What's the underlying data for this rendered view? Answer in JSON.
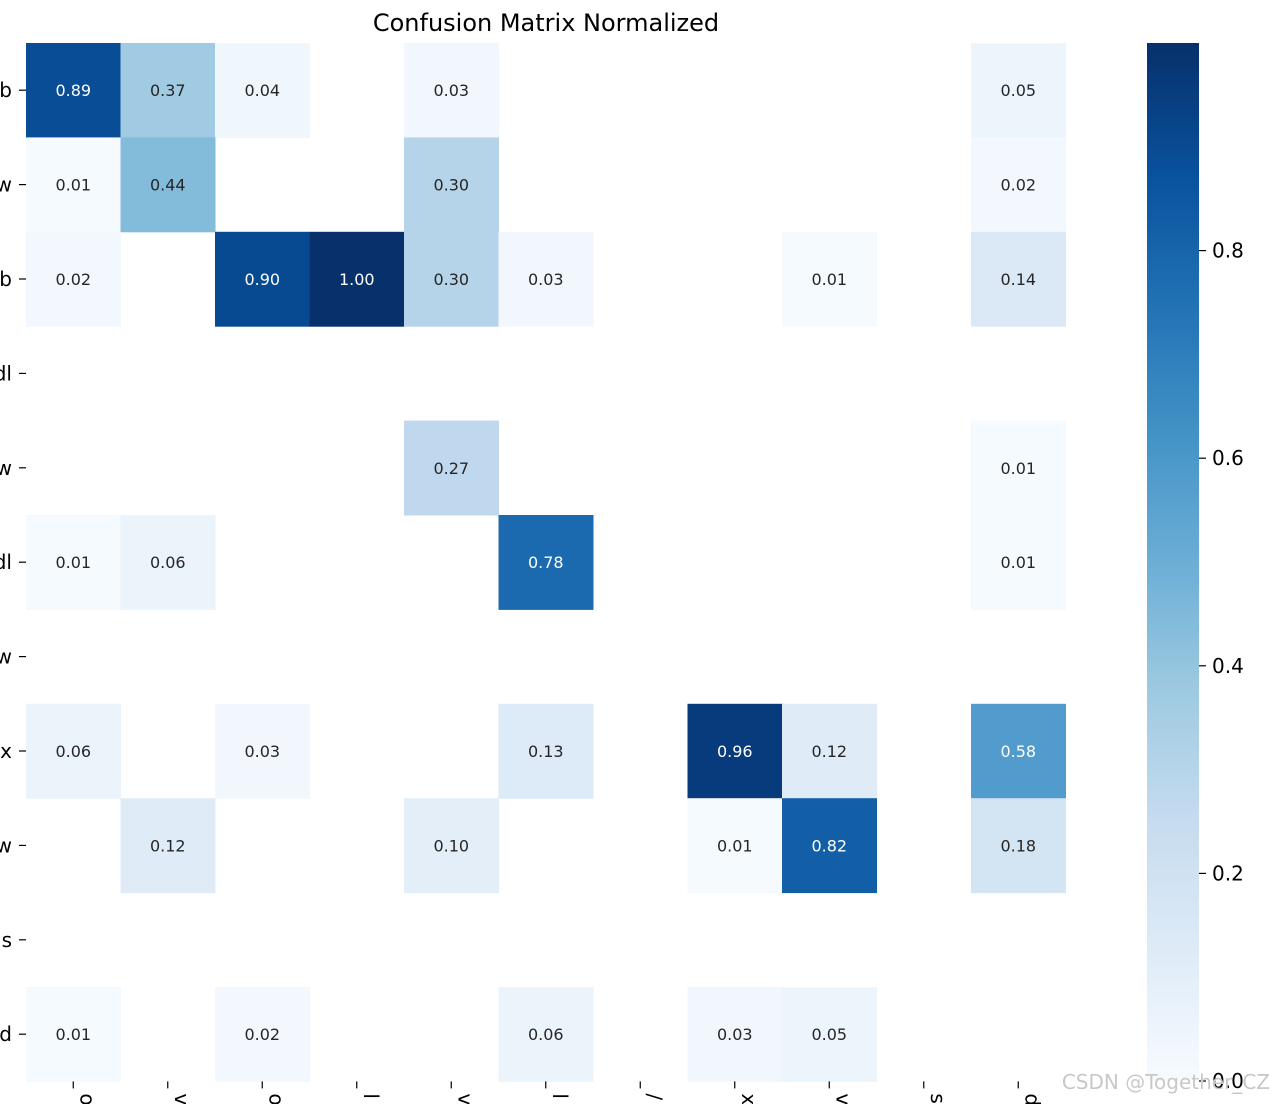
{
  "chart_data": {
    "type": "heatmap",
    "title": "Confusion Matrix Normalized",
    "colormap": "Blues",
    "vmin": 0,
    "vmax": 1.0,
    "y_tick_labels": [
      "b",
      "w",
      "b",
      "dl",
      "w",
      "dl",
      "w",
      "x",
      "w",
      "s",
      "d"
    ],
    "x_tick_labels": [
      "o",
      "v",
      "o",
      "l",
      "v",
      "l",
      "/",
      "x",
      "v",
      "s",
      "d"
    ],
    "values": [
      [
        0.89,
        0.37,
        0.04,
        null,
        0.03,
        null,
        null,
        null,
        null,
        null,
        0.05
      ],
      [
        0.01,
        0.44,
        null,
        null,
        0.3,
        null,
        null,
        null,
        null,
        null,
        0.02
      ],
      [
        0.02,
        null,
        0.9,
        1.0,
        0.3,
        0.03,
        null,
        null,
        0.01,
        null,
        0.14
      ],
      [
        null,
        null,
        null,
        null,
        null,
        null,
        null,
        null,
        null,
        null,
        null
      ],
      [
        null,
        null,
        null,
        null,
        0.27,
        null,
        null,
        null,
        null,
        null,
        0.01
      ],
      [
        0.01,
        0.06,
        null,
        null,
        null,
        0.78,
        null,
        null,
        null,
        null,
        0.01
      ],
      [
        null,
        null,
        null,
        null,
        null,
        null,
        null,
        null,
        null,
        null,
        null
      ],
      [
        0.06,
        null,
        0.03,
        null,
        null,
        0.13,
        null,
        0.96,
        0.12,
        null,
        0.58
      ],
      [
        null,
        0.12,
        null,
        null,
        0.1,
        null,
        null,
        0.01,
        0.82,
        null,
        0.18
      ],
      [
        null,
        null,
        null,
        null,
        null,
        null,
        null,
        null,
        null,
        null,
        null
      ],
      [
        0.01,
        null,
        0.02,
        null,
        null,
        0.06,
        null,
        0.03,
        0.05,
        null,
        null
      ]
    ],
    "colorbar": {
      "ticks": [
        0.0,
        0.2,
        0.4,
        0.6,
        0.8
      ],
      "tick_labels": [
        "0.0",
        "0.2",
        "0.4",
        "0.6",
        "0.8"
      ]
    }
  },
  "watermark": "CSDN @Together_CZ"
}
